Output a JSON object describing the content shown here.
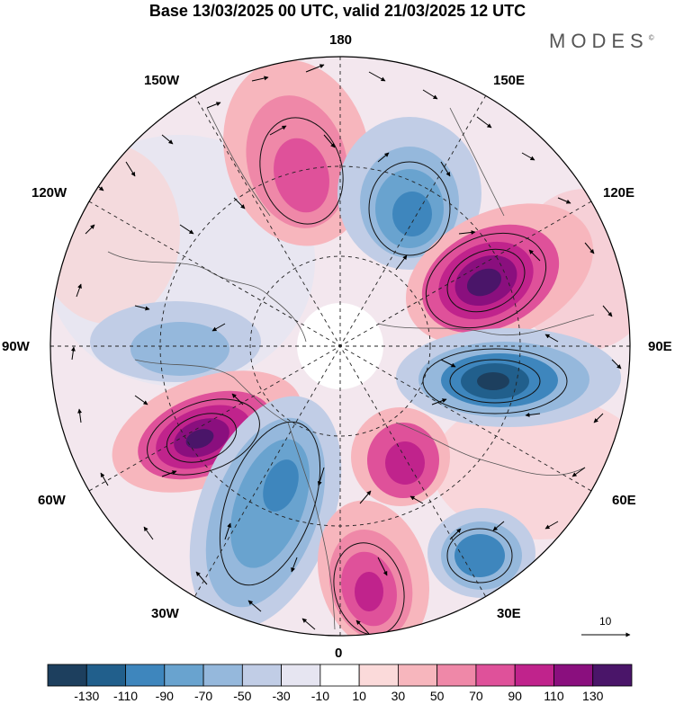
{
  "title": "Base 13/03/2025 00 UTC, valid 21/03/2025 12 UTC",
  "brand": "MODES",
  "brand_mark": "©",
  "longitude_labels": {
    "top": "180",
    "top_left": "150W",
    "top_right": "150E",
    "upper_left": "120W",
    "upper_right": "120E",
    "left": "90W",
    "right": "90E",
    "lower_left": "60W",
    "lower_right": "60E",
    "bottom_left": "30W",
    "bottom_right": "30E",
    "bottom": "0"
  },
  "vector_scale_label": "10",
  "colorbar": {
    "tick_labels": [
      "-130",
      "-110",
      "-90",
      "-70",
      "-50",
      "-30",
      "-10",
      "10",
      "30",
      "50",
      "70",
      "90",
      "110",
      "130"
    ],
    "colors": [
      "#1d3f5e",
      "#215f8c",
      "#3e86bd",
      "#69a3cf",
      "#95b8dc",
      "#c1cde6",
      "#e6e5f1",
      "#ffffff",
      "#fbdada",
      "#f7b6bd",
      "#ef88a8",
      "#df519a",
      "#c0238c",
      "#8a0f7e",
      "#4a1569"
    ]
  },
  "anomaly_centers": [
    {
      "sign": "positive",
      "level": 90,
      "lon_label": "150W-180"
    },
    {
      "sign": "negative",
      "level": -90,
      "lon_label": "150E"
    },
    {
      "sign": "positive",
      "level": 130,
      "lon_label": "120E"
    },
    {
      "sign": "negative",
      "level": -130,
      "lon_label": "90E"
    },
    {
      "sign": "negative",
      "level": -50,
      "lon_label": "90W"
    },
    {
      "sign": "positive",
      "level": 130,
      "lon_label": "60W"
    },
    {
      "sign": "negative",
      "level": -70,
      "lon_label": "30W"
    },
    {
      "sign": "positive",
      "level": 110,
      "lon_label": "0"
    },
    {
      "sign": "positive",
      "level": 90,
      "lon_label": "30E"
    },
    {
      "sign": "negative",
      "level": -90,
      "lon_label": "30E"
    },
    {
      "sign": "positive",
      "level": 50,
      "lon_label": "60E"
    }
  ]
}
